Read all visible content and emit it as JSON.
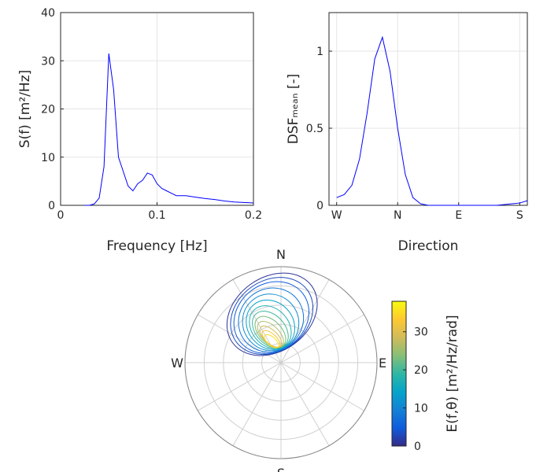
{
  "chart_data": [
    {
      "type": "line",
      "xlabel": "Frequency [Hz]",
      "ylabel": "S(f) [m²/Hz]",
      "color": "#0000ff",
      "grid": true,
      "x": [
        0.025,
        0.03,
        0.035,
        0.04,
        0.045,
        0.05,
        0.055,
        0.06,
        0.065,
        0.07,
        0.075,
        0.08,
        0.085,
        0.09,
        0.095,
        0.1,
        0.105,
        0.11,
        0.115,
        0.12,
        0.13,
        0.14,
        0.15,
        0.16,
        0.17,
        0.18,
        0.19,
        0.2
      ],
      "values": [
        0,
        0,
        0.3,
        1.5,
        8,
        31.5,
        24,
        10,
        7,
        4,
        3,
        4.5,
        5.2,
        6.7,
        6.3,
        4.5,
        3.5,
        3,
        2.5,
        2,
        2,
        1.7,
        1.4,
        1.2,
        0.9,
        0.7,
        0.6,
        0.5
      ],
      "xlim": [
        0,
        0.2
      ],
      "xticks": [
        0,
        0.1,
        0.2
      ],
      "ylim": [
        0,
        40
      ],
      "yticks": [
        0,
        10,
        20,
        30,
        40
      ]
    },
    {
      "type": "line",
      "xlabel": "Direction",
      "ylabel": "DSFₘₑₐₙ [-]",
      "color": "#0000ff",
      "grid": true,
      "x": [
        -90,
        -78.75,
        -67.5,
        -56.25,
        -45,
        -33.75,
        -22.5,
        -11.25,
        0,
        11.25,
        22.5,
        33.75,
        45,
        56.25,
        67.5,
        78.75,
        90,
        101.25,
        112.5,
        123.75,
        135,
        146.25,
        157.5,
        168.75,
        180,
        191.25
      ],
      "values": [
        0.05,
        0.07,
        0.13,
        0.3,
        0.6,
        0.95,
        1.09,
        0.87,
        0.5,
        0.2,
        0.05,
        0.01,
        0,
        0,
        0,
        0,
        0,
        0,
        0,
        0,
        0,
        0,
        0.005,
        0.01,
        0.015,
        0.03
      ],
      "xlim": [
        -101.25,
        191.25
      ],
      "xticks": [
        {
          "value": -90,
          "label": "W"
        },
        {
          "value": 0,
          "label": "N"
        },
        {
          "value": 90,
          "label": "E"
        },
        {
          "value": 180,
          "label": "S"
        }
      ],
      "ylim": [
        0,
        1.25
      ],
      "yticks": [
        0,
        0.5,
        1
      ]
    },
    {
      "type": "polar-contour",
      "direction_labels": [
        "N",
        "E",
        "S",
        "W"
      ],
      "levels": [
        1,
        3,
        5,
        8,
        11,
        14,
        17,
        20,
        23,
        26,
        29,
        32,
        35
      ],
      "colorbar_label": "E(f,θ) [m²/Hz/rad]",
      "clim": [
        0,
        38
      ],
      "colorbar_ticks": [
        0,
        10,
        20,
        30
      ]
    }
  ]
}
